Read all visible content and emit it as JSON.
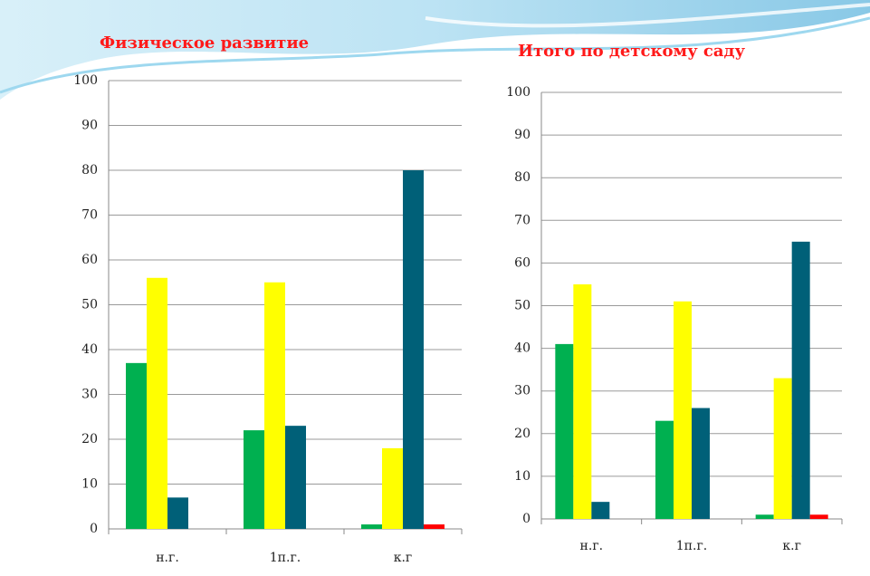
{
  "chart_data": [
    {
      "type": "bar",
      "title": "Физическое развитие",
      "categories": [
        "н.г.",
        "1п.г.",
        "к.г"
      ],
      "series": [
        {
          "color": "#00b050",
          "values": [
            37,
            22,
            1
          ]
        },
        {
          "color": "#ffff00",
          "values": [
            56,
            55,
            18
          ]
        },
        {
          "color": "#006078",
          "values": [
            7,
            23,
            80
          ]
        },
        {
          "color": "#ff0000",
          "values": [
            0,
            0,
            1
          ]
        }
      ],
      "ylim": [
        0,
        100
      ],
      "yticks": [
        0,
        10,
        20,
        30,
        40,
        50,
        60,
        70,
        80,
        90,
        100
      ],
      "grid": true
    },
    {
      "type": "bar",
      "title": "Итого по детскому саду",
      "categories": [
        "н.г.",
        "1п.г.",
        "к.г"
      ],
      "series": [
        {
          "color": "#00b050",
          "values": [
            41,
            23,
            1
          ]
        },
        {
          "color": "#ffff00",
          "values": [
            55,
            51,
            33
          ]
        },
        {
          "color": "#006078",
          "values": [
            4,
            26,
            65
          ]
        },
        {
          "color": "#ff0000",
          "values": [
            0,
            0,
            1
          ]
        }
      ],
      "ylim": [
        0,
        100
      ],
      "yticks": [
        0,
        10,
        20,
        30,
        40,
        50,
        60,
        70,
        80,
        90,
        100
      ],
      "grid": true
    }
  ]
}
